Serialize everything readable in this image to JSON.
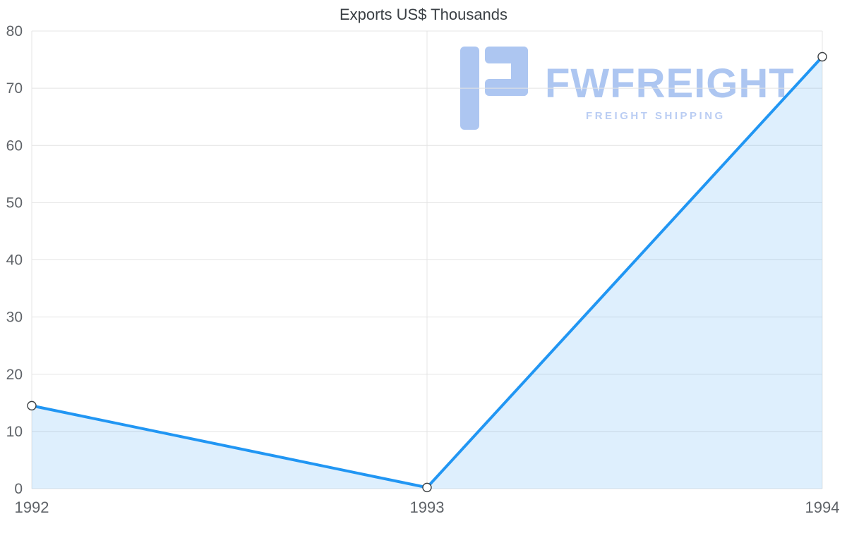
{
  "chart_data": {
    "type": "area",
    "title": "Exports US$ Thousands",
    "x": [
      1992,
      1993,
      1994
    ],
    "series": [
      {
        "name": "Exports US$ Thousands",
        "values": [
          14.5,
          0.2,
          75.5
        ]
      }
    ],
    "xlabel": "",
    "ylabel": "",
    "ylim": [
      0,
      80
    ],
    "yticks": [
      0,
      10,
      20,
      30,
      40,
      50,
      60,
      70,
      80
    ],
    "grid": true,
    "legend": "none",
    "line_color": "#2196f3",
    "area_fill": "rgba(33,150,243,0.15)",
    "marker_fill": "#ffffff",
    "marker_stroke": "#3c4043",
    "grid_color": "#e4e4e4",
    "axis_text_color": "#5f6368",
    "title_color": "#3b4045"
  },
  "watermark": {
    "brand": "FWFREIGHT",
    "tagline": "FREIGHT SHIPPING",
    "color": "#a9c4f1"
  }
}
